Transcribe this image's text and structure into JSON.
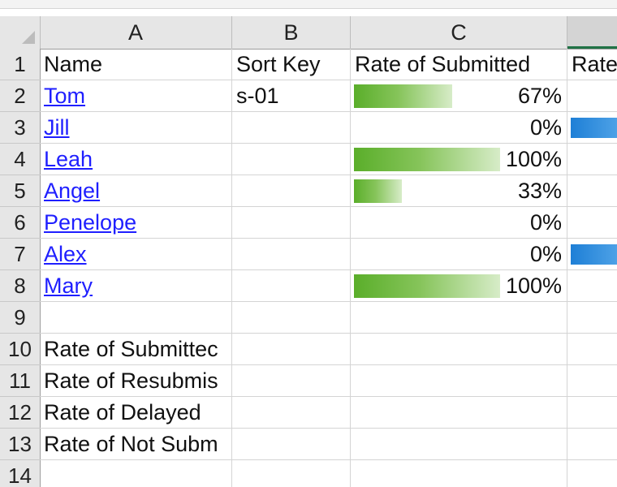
{
  "columns": [
    "A",
    "B",
    "C"
  ],
  "row_numbers": [
    "1",
    "2",
    "3",
    "4",
    "5",
    "6",
    "7",
    "8",
    "9",
    "10",
    "11",
    "12",
    "13",
    "14"
  ],
  "header_row": {
    "name": "Name",
    "sort_key": "Sort Key",
    "rate_of_submitted": "Rate of Submitted",
    "next_column_partial": "Rate"
  },
  "people": [
    {
      "name": "Tom",
      "sort_key": "s-01",
      "rate": "67%",
      "rate_value": 0.67,
      "blue_bar": false
    },
    {
      "name": "Jill",
      "sort_key": "",
      "rate": "0%",
      "rate_value": 0,
      "blue_bar": true
    },
    {
      "name": "Leah",
      "sort_key": "",
      "rate": "100%",
      "rate_value": 1.0,
      "blue_bar": false
    },
    {
      "name": "Angel",
      "sort_key": "",
      "rate": "33%",
      "rate_value": 0.33,
      "blue_bar": false
    },
    {
      "name": "Penelope",
      "sort_key": "",
      "rate": "0%",
      "rate_value": 0,
      "blue_bar": false
    },
    {
      "name": "Alex",
      "sort_key": "",
      "rate": "0%",
      "rate_value": 0,
      "blue_bar": true
    },
    {
      "name": "Mary",
      "sort_key": "",
      "rate": "100%",
      "rate_value": 1.0,
      "blue_bar": false
    }
  ],
  "summary_labels": [
    "Rate of Submittec",
    "Rate of Resubmis",
    "Rate of Delayed",
    "Rate of Not Subm"
  ],
  "colors": {
    "hyperlink": "#1f1fff",
    "data_bar_green": "#5aae2a",
    "data_bar_blue": "#1e7fd6",
    "header_bg": "#e6e6e6",
    "active_col_accent": "#217346"
  }
}
